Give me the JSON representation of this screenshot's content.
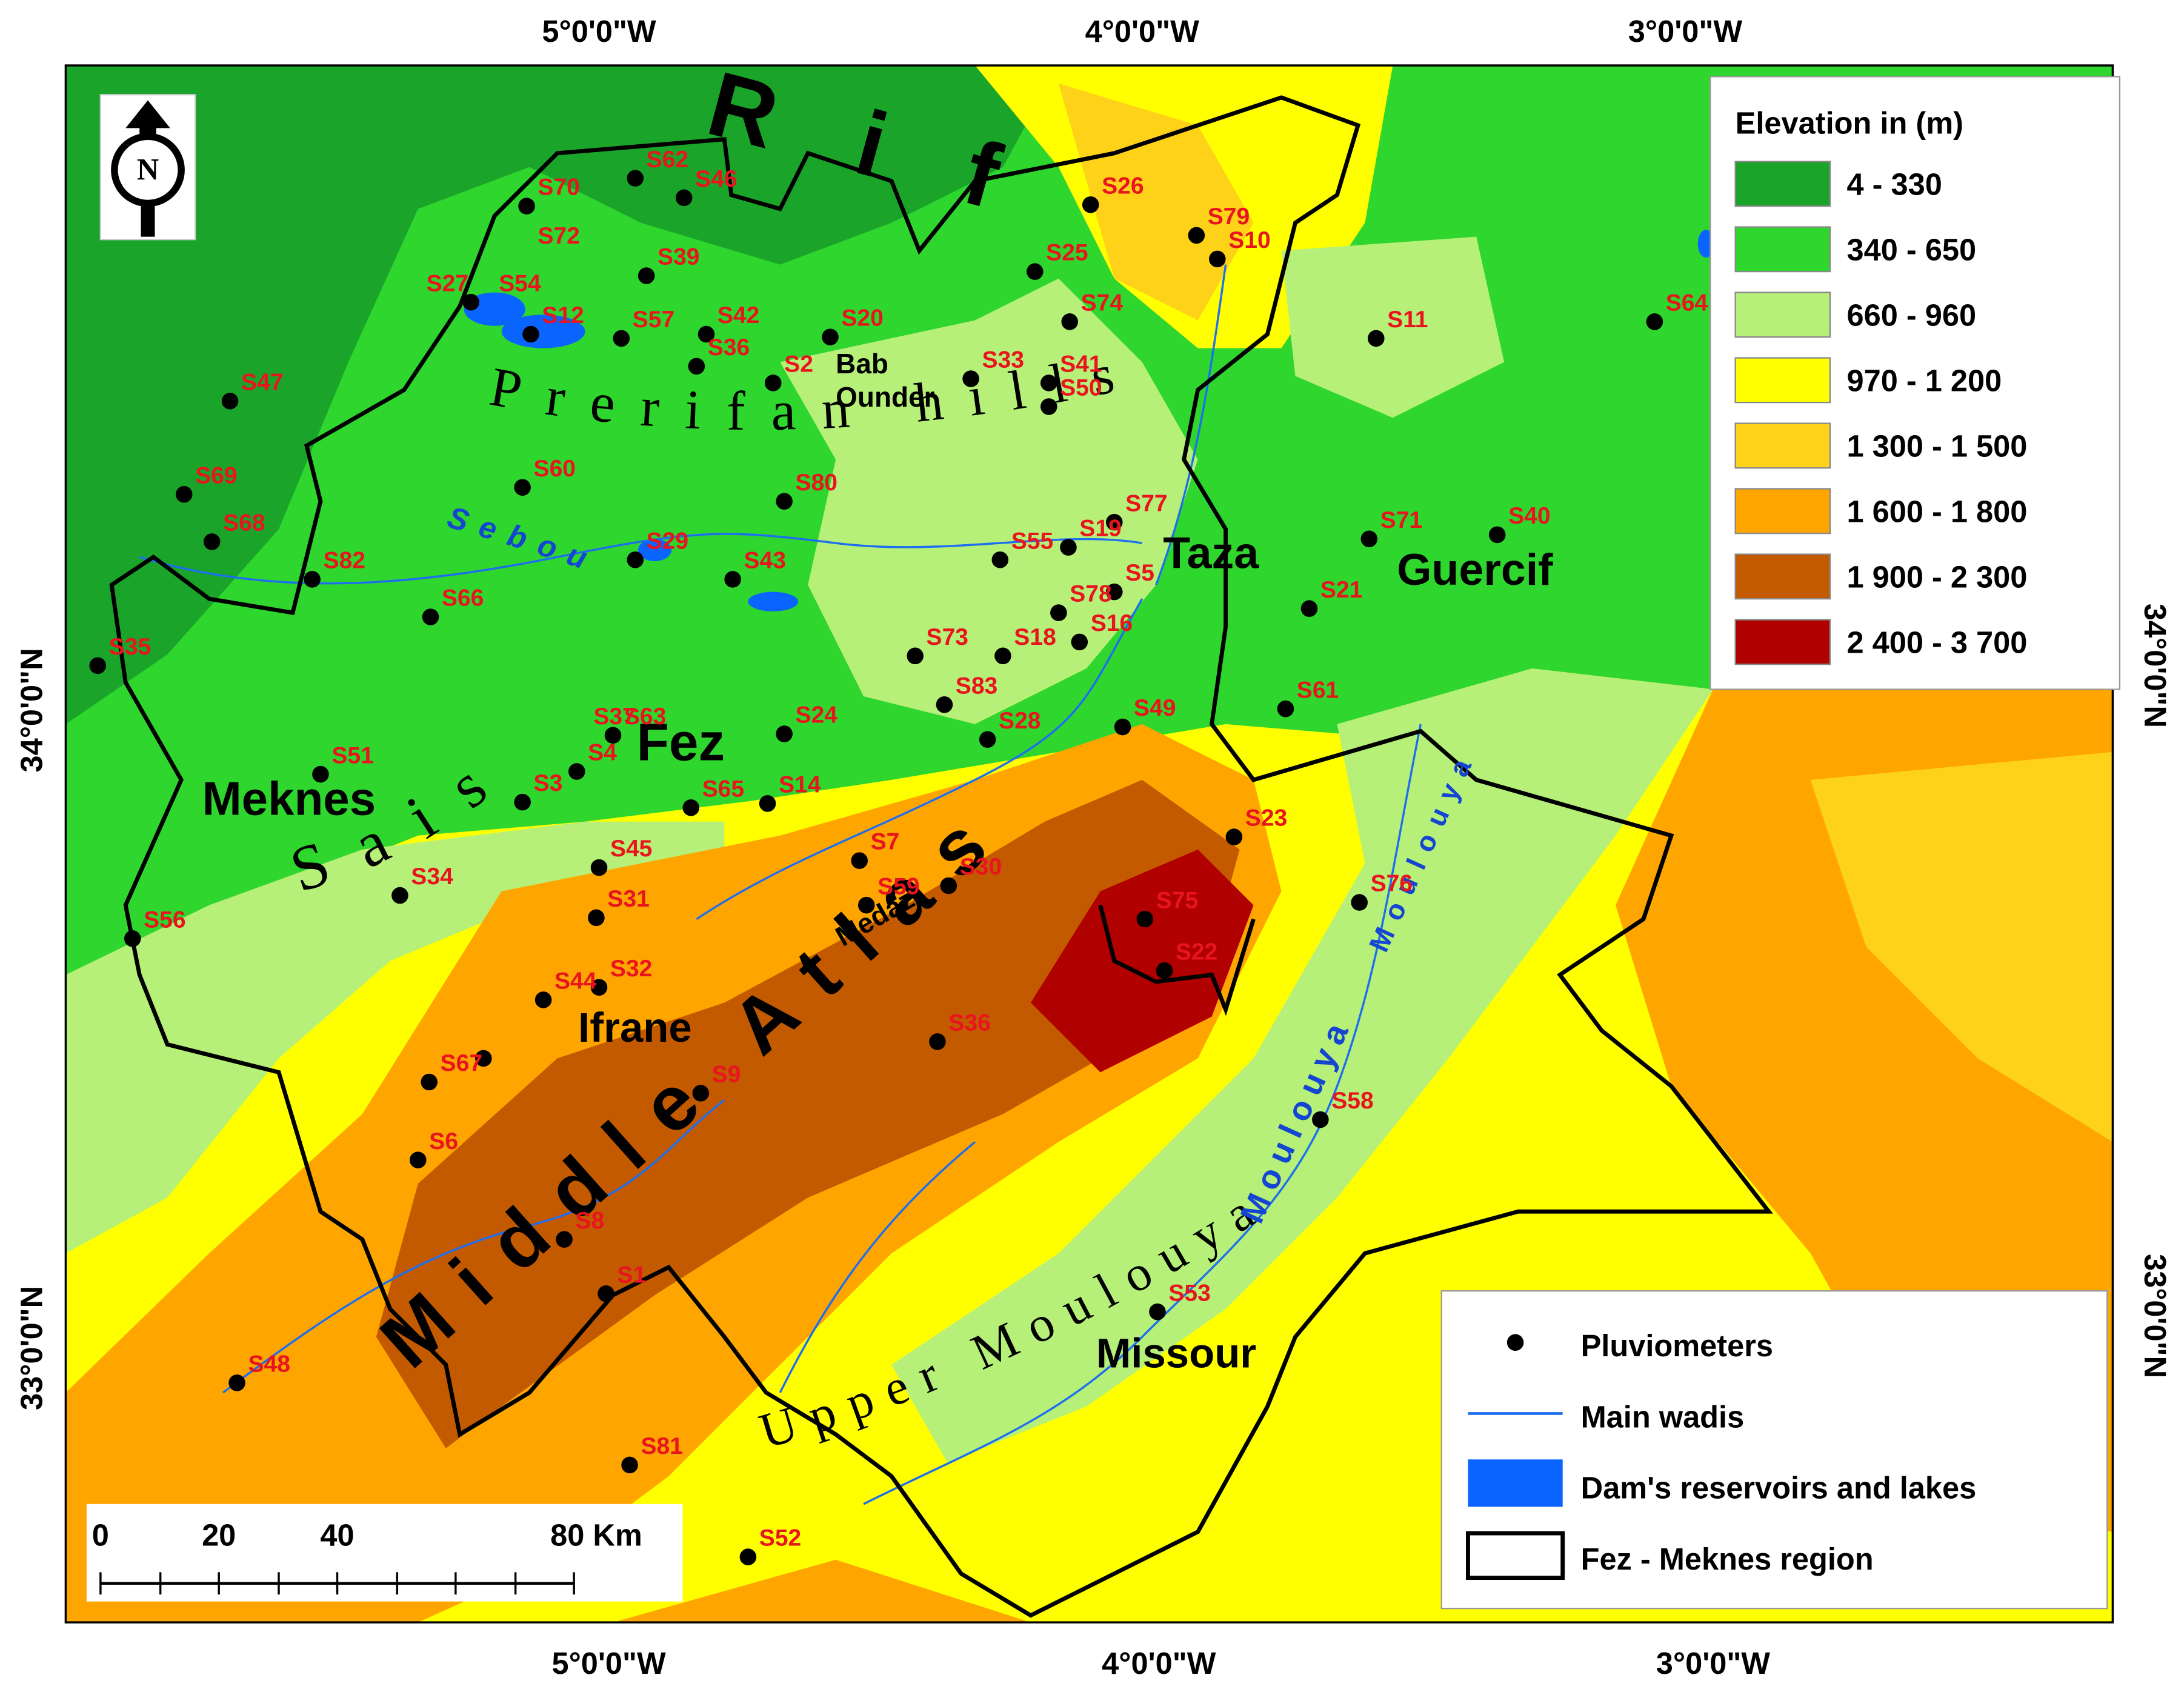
{
  "axes": {
    "top": [
      "5°0'0\"W",
      "4°0'0\"W",
      "3°0'0\"W"
    ],
    "bottom": [
      "5°0'0\"W",
      "4°0'0\"W",
      "3°0'0\"W"
    ],
    "left": [
      "34°0'0\"N",
      "33°0'0\"N"
    ],
    "right": [
      "34°0'0\"N",
      "33°0'0\"N"
    ]
  },
  "north_arrow": "N",
  "legend_elevation": {
    "title": "Elevation in (m)",
    "classes": [
      {
        "label": "4 - 330",
        "color": "#1aa52a"
      },
      {
        "label": "340 - 650",
        "color": "#2ed62e"
      },
      {
        "label": "660 - 960",
        "color": "#b6f078"
      },
      {
        "label": "970 - 1 200",
        "color": "#ffff00"
      },
      {
        "label": "1 300 - 1 500",
        "color": "#ffd21a"
      },
      {
        "label": "1 600 - 1 800",
        "color": "#ffa500"
      },
      {
        "label": "1 900 - 2 300",
        "color": "#c45a00"
      },
      {
        "label": "2 400 - 3 700",
        "color": "#b00000"
      }
    ]
  },
  "legend_features": {
    "items": [
      "Pluviometers",
      "Main wadis",
      "Dam's reservoirs and lakes",
      "Fez - Meknes region"
    ]
  },
  "places": [
    {
      "lines": [
        "Meknes"
      ]
    },
    {
      "lines": [
        "Fez"
      ]
    },
    {
      "lines": [
        "Ifrane"
      ]
    },
    {
      "lines": [
        "Taza"
      ]
    },
    {
      "lines": [
        "Guercif"
      ]
    },
    {
      "lines": [
        "Missour"
      ]
    },
    {
      "lines": [
        "Bab",
        "Ounder"
      ]
    }
  ],
  "regions": [
    "Rif",
    "Prerifan hills",
    "Sebou",
    "Sais",
    "Middle Atlas",
    "Upper Moulouya",
    "Medaz",
    "Moulouya",
    "Moulouya"
  ],
  "stations": [
    "S70",
    "S62",
    "S46",
    "S26",
    "S79",
    "S10",
    "S25",
    "S39",
    "S72",
    "S27",
    "S54",
    "S12",
    "S57",
    "S42",
    "S36",
    "S2",
    "S20",
    "S74",
    "S11",
    "S64",
    "S33",
    "S41",
    "S50",
    "S47",
    "S60",
    "S80",
    "S69",
    "S68",
    "S29",
    "S43",
    "S55",
    "S19",
    "S77",
    "S71",
    "S40",
    "S82",
    "S66",
    "S5",
    "S78",
    "S16",
    "S18",
    "S73",
    "S83",
    "S28",
    "S21",
    "S61",
    "S35",
    "S49",
    "S37",
    "S63",
    "S4",
    "S3",
    "S51",
    "S24",
    "S65",
    "S14",
    "S7",
    "S59",
    "S30",
    "S45",
    "S31",
    "S34",
    "S56",
    "S23",
    "S75",
    "S76",
    "S22",
    "S44",
    "S32",
    "S36",
    "S67",
    "S9",
    "S6",
    "S58",
    "S8",
    "S1",
    "S53",
    "S48",
    "S81",
    "S52"
  ],
  "scale_bar": {
    "labels": [
      "0",
      "20",
      "40",
      "80 Km"
    ]
  }
}
